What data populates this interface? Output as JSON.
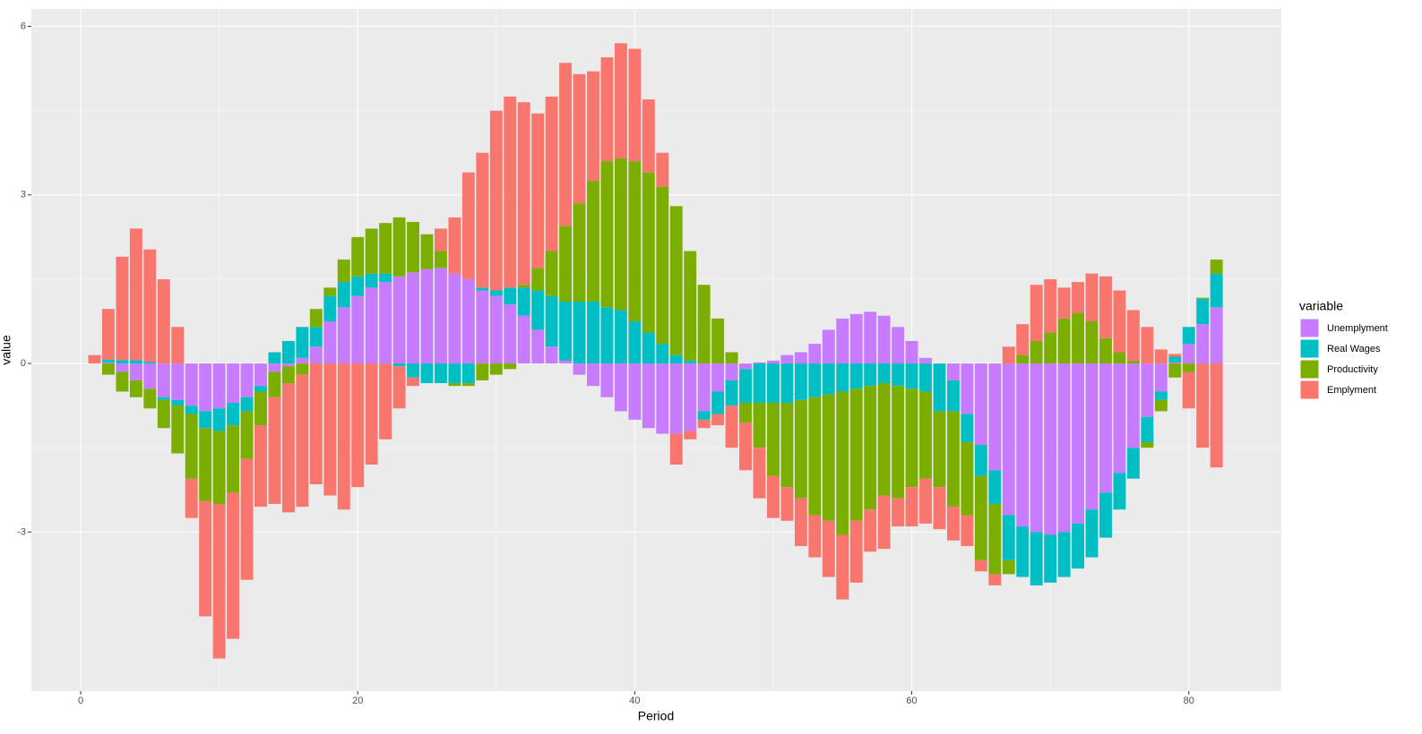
{
  "chart_data": {
    "type": "stacked_bar",
    "xlabel": "Period",
    "ylabel": "value",
    "legend_title": "variable",
    "legend_position": "right",
    "grid": true,
    "xlim": [
      -3.56,
      86.68
    ],
    "ylim": [
      -5.83,
      6.31
    ],
    "xticks": [
      0,
      20,
      40,
      60,
      80
    ],
    "yticks": [
      -3,
      0,
      3,
      6
    ],
    "x": [
      1,
      2,
      3,
      4,
      5,
      6,
      7,
      8,
      9,
      10,
      11,
      12,
      13,
      14,
      15,
      16,
      17,
      18,
      19,
      20,
      21,
      22,
      23,
      24,
      25,
      26,
      27,
      28,
      29,
      30,
      31,
      32,
      33,
      34,
      35,
      36,
      37,
      38,
      39,
      40,
      41,
      42,
      43,
      44,
      45,
      46,
      47,
      48,
      49,
      50,
      51,
      52,
      53,
      54,
      55,
      56,
      57,
      58,
      59,
      60,
      61,
      62,
      63,
      64,
      65,
      66,
      67,
      68,
      69,
      70,
      71,
      72,
      73,
      74,
      75,
      76,
      77,
      78,
      79,
      80,
      81,
      82
    ],
    "series": [
      {
        "name": "Unemplyment",
        "color": "#C77CFF",
        "values": [
          0,
          0.02,
          -0.15,
          -0.3,
          -0.45,
          -0.6,
          -0.65,
          -0.75,
          -0.85,
          -0.8,
          -0.7,
          -0.6,
          -0.4,
          -0.15,
          -0.05,
          0.1,
          0.3,
          0.75,
          1.0,
          1.2,
          1.35,
          1.45,
          1.55,
          1.62,
          1.68,
          1.7,
          1.6,
          1.5,
          1.3,
          1.2,
          1.05,
          0.85,
          0.6,
          0.3,
          0.05,
          -0.2,
          -0.4,
          -0.6,
          -0.85,
          -1.0,
          -1.15,
          -1.25,
          -1.25,
          -1.2,
          -0.85,
          -0.5,
          -0.3,
          -0.1,
          0.02,
          0.05,
          0.15,
          0.2,
          0.35,
          0.6,
          0.8,
          0.88,
          0.92,
          0.85,
          0.65,
          0.4,
          0.1,
          0,
          -0.3,
          -0.9,
          -1.45,
          -1.9,
          -2.7,
          -2.9,
          -3.0,
          -3.05,
          -3.0,
          -2.85,
          -2.6,
          -2.3,
          -1.95,
          -1.5,
          -0.95,
          -0.5,
          0.02,
          0.35,
          0.7,
          1.0
        ]
      },
      {
        "name": "Real Wages",
        "color": "#00BFC4",
        "values": [
          0,
          0.05,
          0.06,
          0.06,
          0.03,
          -0.05,
          -0.1,
          -0.15,
          -0.3,
          -0.4,
          -0.4,
          -0.25,
          -0.1,
          0.2,
          0.4,
          0.55,
          0.35,
          0.45,
          0.45,
          0.35,
          0.25,
          0.15,
          -0.05,
          -0.25,
          -0.35,
          -0.35,
          -0.35,
          -0.35,
          0.05,
          0.1,
          0.3,
          0.5,
          0.7,
          0.9,
          1.05,
          1.1,
          1.1,
          1.0,
          0.95,
          0.75,
          0.55,
          0.35,
          0.15,
          0.05,
          -0.15,
          -0.4,
          -0.45,
          -0.6,
          -0.7,
          -0.7,
          -0.7,
          -0.65,
          -0.6,
          -0.55,
          -0.5,
          -0.45,
          -0.4,
          -0.35,
          -0.4,
          -0.45,
          -0.5,
          -0.85,
          -0.55,
          -0.5,
          -0.55,
          -0.6,
          -0.8,
          -0.9,
          -0.95,
          -0.85,
          -0.8,
          -0.8,
          -0.85,
          -0.8,
          -0.65,
          -0.55,
          -0.45,
          -0.15,
          0.1,
          0.3,
          0.45,
          0.6
        ]
      },
      {
        "name": "Productivity",
        "color": "#7CAE00",
        "values": [
          0,
          -0.2,
          -0.35,
          -0.3,
          -0.35,
          -0.5,
          -0.85,
          -1.15,
          -1.3,
          -1.3,
          -1.2,
          -0.85,
          -0.6,
          -0.45,
          -0.3,
          -0.2,
          0.32,
          0.15,
          0.4,
          0.7,
          0.8,
          0.9,
          1.05,
          0.9,
          0.62,
          0.3,
          -0.05,
          -0.05,
          -0.3,
          -0.2,
          -0.1,
          0.05,
          0.4,
          0.8,
          1.35,
          1.75,
          2.15,
          2.6,
          2.7,
          2.85,
          2.85,
          2.8,
          2.65,
          1.95,
          1.4,
          0.8,
          0.2,
          -0.35,
          -0.8,
          -1.3,
          -1.5,
          -1.75,
          -2.1,
          -2.25,
          -2.55,
          -2.35,
          -2.2,
          -2.0,
          -2.0,
          -1.75,
          -1.55,
          -1.35,
          -1.7,
          -1.3,
          -1.5,
          -1.25,
          -0.25,
          0.15,
          0.4,
          0.55,
          0.8,
          0.9,
          0.75,
          0.45,
          0.2,
          0.05,
          -0.1,
          -0.2,
          -0.25,
          -0.15,
          0.02,
          0.25
        ]
      },
      {
        "name": "Emplyment",
        "color": "#F8766D",
        "values": [
          0.15,
          0.9,
          1.84,
          2.34,
          2.0,
          1.5,
          0.65,
          -0.7,
          -2.05,
          -2.75,
          -2.6,
          -2.15,
          -1.45,
          -1.9,
          -2.3,
          -2.35,
          -2.15,
          -2.35,
          -2.6,
          -2.2,
          -1.8,
          -1.35,
          -0.75,
          -0.15,
          0,
          0.4,
          1.0,
          1.9,
          2.4,
          3.2,
          3.4,
          3.25,
          2.75,
          2.75,
          2.9,
          2.3,
          1.95,
          1.85,
          2.05,
          2.0,
          1.3,
          0.6,
          -0.55,
          -0.15,
          -0.15,
          -0.2,
          -0.75,
          -0.85,
          -0.9,
          -0.75,
          -0.6,
          -0.85,
          -0.75,
          -1.0,
          -1.15,
          -1.1,
          -0.75,
          -0.95,
          -0.5,
          -0.7,
          -0.8,
          -0.75,
          -0.6,
          -0.55,
          -0.2,
          -0.2,
          0.3,
          0.55,
          1.0,
          0.95,
          0.55,
          0.55,
          0.85,
          1.1,
          1.1,
          0.9,
          0.65,
          0.25,
          0.05,
          -0.65,
          -1.5,
          -1.85
        ]
      }
    ]
  }
}
